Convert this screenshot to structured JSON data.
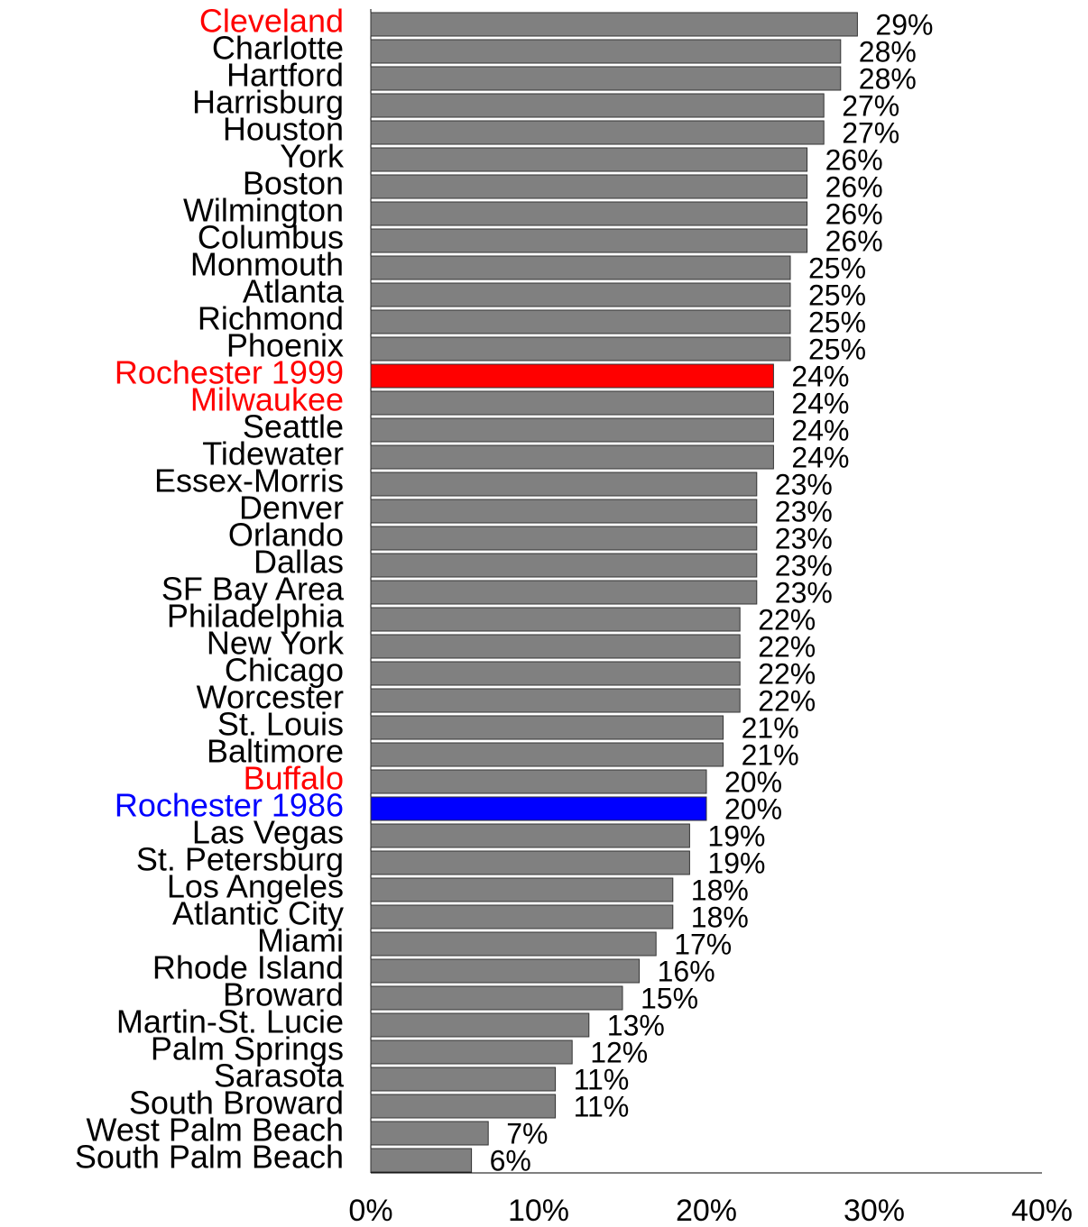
{
  "chart_data": {
    "type": "barh",
    "categories": [
      "Cleveland",
      "Charlotte",
      "Hartford",
      "Harrisburg",
      "Houston",
      "York",
      "Boston",
      "Wilmington",
      "Columbus",
      "Monmouth",
      "Atlanta",
      "Richmond",
      "Phoenix",
      "Rochester 1999",
      "Milwaukee",
      "Seattle",
      "Tidewater",
      "Essex-Morris",
      "Denver",
      "Orlando",
      "Dallas",
      "SF Bay Area",
      "Philadelphia",
      "New York",
      "Chicago",
      "Worcester",
      "St. Louis",
      "Baltimore",
      "Buffalo",
      "Rochester 1986",
      "Las Vegas",
      "St. Petersburg",
      "Los Angeles",
      "Atlantic City",
      "Miami",
      "Rhode Island",
      "Broward",
      "Martin-St. Lucie",
      "Palm Springs",
      "Sarasota",
      "South Broward",
      "West Palm Beach",
      "South Palm Beach"
    ],
    "values": [
      29,
      28,
      28,
      27,
      27,
      26,
      26,
      26,
      26,
      25,
      25,
      25,
      25,
      24,
      24,
      24,
      24,
      23,
      23,
      23,
      23,
      23,
      22,
      22,
      22,
      22,
      21,
      21,
      20,
      20,
      19,
      19,
      18,
      18,
      17,
      16,
      15,
      13,
      12,
      11,
      11,
      7,
      6
    ],
    "value_labels": [
      "29%",
      "28%",
      "28%",
      "27%",
      "27%",
      "26%",
      "26%",
      "26%",
      "26%",
      "25%",
      "25%",
      "25%",
      "25%",
      "24%",
      "24%",
      "24%",
      "24%",
      "23%",
      "23%",
      "23%",
      "23%",
      "23%",
      "22%",
      "22%",
      "22%",
      "22%",
      "21%",
      "21%",
      "20%",
      "20%",
      "19%",
      "19%",
      "18%",
      "18%",
      "17%",
      "16%",
      "15%",
      "13%",
      "12%",
      "11%",
      "11%",
      "7%",
      "6%"
    ],
    "colors": [
      "#808080",
      "#808080",
      "#808080",
      "#808080",
      "#808080",
      "#808080",
      "#808080",
      "#808080",
      "#808080",
      "#808080",
      "#808080",
      "#808080",
      "#808080",
      "#ff0000",
      "#808080",
      "#808080",
      "#808080",
      "#808080",
      "#808080",
      "#808080",
      "#808080",
      "#808080",
      "#808080",
      "#808080",
      "#808080",
      "#808080",
      "#808080",
      "#808080",
      "#808080",
      "#0000ff",
      "#808080",
      "#808080",
      "#808080",
      "#808080",
      "#808080",
      "#808080",
      "#808080",
      "#808080",
      "#808080",
      "#808080",
      "#808080",
      "#808080",
      "#808080"
    ],
    "label_colors": [
      "#ff0000",
      "#000000",
      "#000000",
      "#000000",
      "#000000",
      "#000000",
      "#000000",
      "#000000",
      "#000000",
      "#000000",
      "#000000",
      "#000000",
      "#000000",
      "#ff0000",
      "#ff0000",
      "#000000",
      "#000000",
      "#000000",
      "#000000",
      "#000000",
      "#000000",
      "#000000",
      "#000000",
      "#000000",
      "#000000",
      "#000000",
      "#000000",
      "#000000",
      "#ff0000",
      "#0000ff",
      "#000000",
      "#000000",
      "#000000",
      "#000000",
      "#000000",
      "#000000",
      "#000000",
      "#000000",
      "#000000",
      "#000000",
      "#000000",
      "#000000",
      "#000000"
    ],
    "xlim": [
      0,
      40
    ],
    "xticks": [
      {
        "value": 0,
        "label": "0%"
      },
      {
        "value": 10,
        "label": "10%"
      },
      {
        "value": 20,
        "label": "20%"
      },
      {
        "value": 30,
        "label": "30%"
      },
      {
        "value": 40,
        "label": "40%"
      }
    ]
  }
}
